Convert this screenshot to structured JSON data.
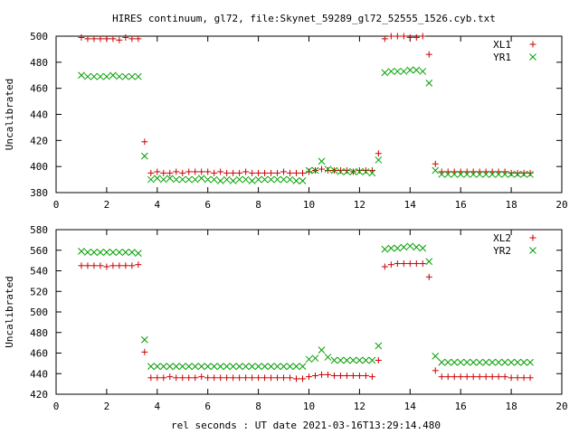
{
  "title": "HIRES continuum, gl72, file:Skynet_59289_gl72_52555_1526.cyb.txt",
  "xlabel": "rel seconds : UT date 2021-03-16T13:29:14.480",
  "colors": {
    "red": "#cc0000",
    "green": "#00a000",
    "axis": "#000000",
    "background": "#ffffff"
  },
  "chart_data": [
    {
      "type": "scatter",
      "ylabel": "Uncalibrated",
      "xlim": [
        0,
        20
      ],
      "ylim": [
        380,
        500
      ],
      "xticks": [
        0,
        2,
        4,
        6,
        8,
        10,
        12,
        14,
        16,
        18,
        20
      ],
      "yticks": [
        380,
        400,
        420,
        440,
        460,
        480,
        500
      ],
      "legend_position": "top-right",
      "series": [
        {
          "name": "XL1",
          "marker": "plus",
          "color": "#cc0000",
          "x": [
            1.0,
            1.25,
            1.5,
            1.75,
            2.0,
            2.25,
            2.5,
            2.75,
            3.0,
            3.25,
            3.5,
            3.75,
            4.0,
            4.25,
            4.5,
            4.75,
            5.0,
            5.25,
            5.5,
            5.75,
            6.0,
            6.25,
            6.5,
            6.75,
            7.0,
            7.25,
            7.5,
            7.75,
            8.0,
            8.25,
            8.5,
            8.75,
            9.0,
            9.25,
            9.5,
            9.75,
            10.0,
            10.25,
            10.5,
            10.75,
            11.0,
            11.25,
            11.5,
            11.75,
            12.0,
            12.25,
            12.5,
            12.75,
            13.0,
            13.25,
            13.5,
            13.75,
            14.0,
            14.25,
            14.5,
            14.75,
            15.0,
            15.25,
            15.5,
            15.75,
            16.0,
            16.25,
            16.5,
            16.75,
            17.0,
            17.25,
            17.5,
            17.75,
            18.0,
            18.25,
            18.5,
            18.75
          ],
          "y": [
            499,
            498,
            498,
            498,
            498,
            498,
            497,
            499,
            498,
            498,
            419,
            395,
            396,
            395,
            395,
            396,
            395,
            396,
            396,
            396,
            396,
            395,
            396,
            395,
            395,
            395,
            396,
            395,
            395,
            395,
            395,
            395,
            396,
            395,
            395,
            395,
            396,
            397,
            398,
            397,
            397,
            397,
            397,
            396,
            397,
            397,
            397,
            410,
            498,
            500,
            500,
            500,
            499,
            499,
            500,
            486,
            402,
            396,
            396,
            396,
            396,
            396,
            396,
            396,
            396,
            396,
            396,
            396,
            395,
            395,
            395,
            395
          ]
        },
        {
          "name": "YR1",
          "marker": "cross",
          "color": "#00a000",
          "x": [
            1.0,
            1.25,
            1.5,
            1.75,
            2.0,
            2.25,
            2.5,
            2.75,
            3.0,
            3.25,
            3.5,
            3.75,
            4.0,
            4.25,
            4.5,
            4.75,
            5.0,
            5.25,
            5.5,
            5.75,
            6.0,
            6.25,
            6.5,
            6.75,
            7.0,
            7.25,
            7.5,
            7.75,
            8.0,
            8.25,
            8.5,
            8.75,
            9.0,
            9.25,
            9.5,
            9.75,
            10.0,
            10.25,
            10.5,
            10.75,
            11.0,
            11.25,
            11.5,
            11.75,
            12.0,
            12.25,
            12.5,
            12.75,
            13.0,
            13.25,
            13.5,
            13.75,
            14.0,
            14.25,
            14.5,
            14.75,
            15.0,
            15.25,
            15.5,
            15.75,
            16.0,
            16.25,
            16.5,
            16.75,
            17.0,
            17.25,
            17.5,
            17.75,
            18.0,
            18.25,
            18.5,
            18.75
          ],
          "y": [
            470,
            469,
            469,
            469,
            469,
            470,
            469,
            469,
            469,
            469,
            408,
            390,
            391,
            390,
            391,
            390,
            390,
            390,
            390,
            391,
            390,
            390,
            389,
            390,
            389,
            390,
            390,
            389,
            390,
            390,
            390,
            390,
            390,
            390,
            389,
            389,
            397,
            397,
            404,
            398,
            397,
            396,
            396,
            396,
            396,
            396,
            395,
            405,
            472,
            473,
            473,
            473,
            474,
            474,
            473,
            464,
            397,
            394,
            394,
            394,
            394,
            394,
            394,
            394,
            394,
            394,
            394,
            394,
            394,
            394,
            394,
            394
          ]
        }
      ]
    },
    {
      "type": "scatter",
      "ylabel": "Uncalibrated",
      "xlabel": "rel seconds : UT date 2021-03-16T13:29:14.480",
      "xlim": [
        0,
        20
      ],
      "ylim": [
        420,
        580
      ],
      "xticks": [
        0,
        2,
        4,
        6,
        8,
        10,
        12,
        14,
        16,
        18,
        20
      ],
      "yticks": [
        420,
        440,
        460,
        480,
        500,
        520,
        540,
        560,
        580
      ],
      "legend_position": "top-right",
      "series": [
        {
          "name": "XL2",
          "marker": "plus",
          "color": "#cc0000",
          "x": [
            1.0,
            1.25,
            1.5,
            1.75,
            2.0,
            2.25,
            2.5,
            2.75,
            3.0,
            3.25,
            3.5,
            3.75,
            4.0,
            4.25,
            4.5,
            4.75,
            5.0,
            5.25,
            5.5,
            5.75,
            6.0,
            6.25,
            6.5,
            6.75,
            7.0,
            7.25,
            7.5,
            7.75,
            8.0,
            8.25,
            8.5,
            8.75,
            9.0,
            9.25,
            9.5,
            9.75,
            10.0,
            10.25,
            10.5,
            10.75,
            11.0,
            11.25,
            11.5,
            11.75,
            12.0,
            12.25,
            12.5,
            12.75,
            13.0,
            13.25,
            13.5,
            13.75,
            14.0,
            14.25,
            14.5,
            14.75,
            15.0,
            15.25,
            15.5,
            15.75,
            16.0,
            16.25,
            16.5,
            16.75,
            17.0,
            17.25,
            17.5,
            17.75,
            18.0,
            18.25,
            18.5,
            18.75
          ],
          "y": [
            545,
            545,
            545,
            545,
            544,
            545,
            545,
            545,
            545,
            546,
            461,
            436,
            436,
            436,
            437,
            436,
            436,
            436,
            436,
            437,
            436,
            436,
            436,
            436,
            436,
            436,
            436,
            436,
            436,
            436,
            436,
            436,
            436,
            436,
            435,
            435,
            437,
            438,
            439,
            439,
            438,
            438,
            438,
            438,
            438,
            438,
            437,
            453,
            544,
            546,
            547,
            547,
            547,
            547,
            547,
            534,
            443,
            437,
            437,
            437,
            437,
            437,
            437,
            437,
            437,
            437,
            437,
            437,
            436,
            436,
            436,
            436
          ]
        },
        {
          "name": "YR2",
          "marker": "cross",
          "color": "#00a000",
          "x": [
            1.0,
            1.25,
            1.5,
            1.75,
            2.0,
            2.25,
            2.5,
            2.75,
            3.0,
            3.25,
            3.5,
            3.75,
            4.0,
            4.25,
            4.5,
            4.75,
            5.0,
            5.25,
            5.5,
            5.75,
            6.0,
            6.25,
            6.5,
            6.75,
            7.0,
            7.25,
            7.5,
            7.75,
            8.0,
            8.25,
            8.5,
            8.75,
            9.0,
            9.25,
            9.5,
            9.75,
            10.0,
            10.25,
            10.5,
            10.75,
            11.0,
            11.25,
            11.5,
            11.75,
            12.0,
            12.25,
            12.5,
            12.75,
            13.0,
            13.25,
            13.5,
            13.75,
            14.0,
            14.25,
            14.5,
            14.75,
            15.0,
            15.25,
            15.5,
            15.75,
            16.0,
            16.25,
            16.5,
            16.75,
            17.0,
            17.25,
            17.5,
            17.75,
            18.0,
            18.25,
            18.5,
            18.75
          ],
          "y": [
            559,
            558,
            558,
            558,
            558,
            558,
            558,
            558,
            558,
            557,
            473,
            447,
            447,
            447,
            447,
            447,
            447,
            447,
            447,
            447,
            447,
            447,
            447,
            447,
            447,
            447,
            447,
            447,
            447,
            447,
            447,
            447,
            447,
            447,
            447,
            447,
            454,
            455,
            463,
            456,
            453,
            453,
            453,
            453,
            453,
            453,
            453,
            467,
            561,
            562,
            562,
            563,
            564,
            563,
            562,
            549,
            457,
            451,
            451,
            451,
            451,
            451,
            451,
            451,
            451,
            451,
            451,
            451,
            451,
            451,
            451,
            451
          ]
        }
      ]
    }
  ]
}
